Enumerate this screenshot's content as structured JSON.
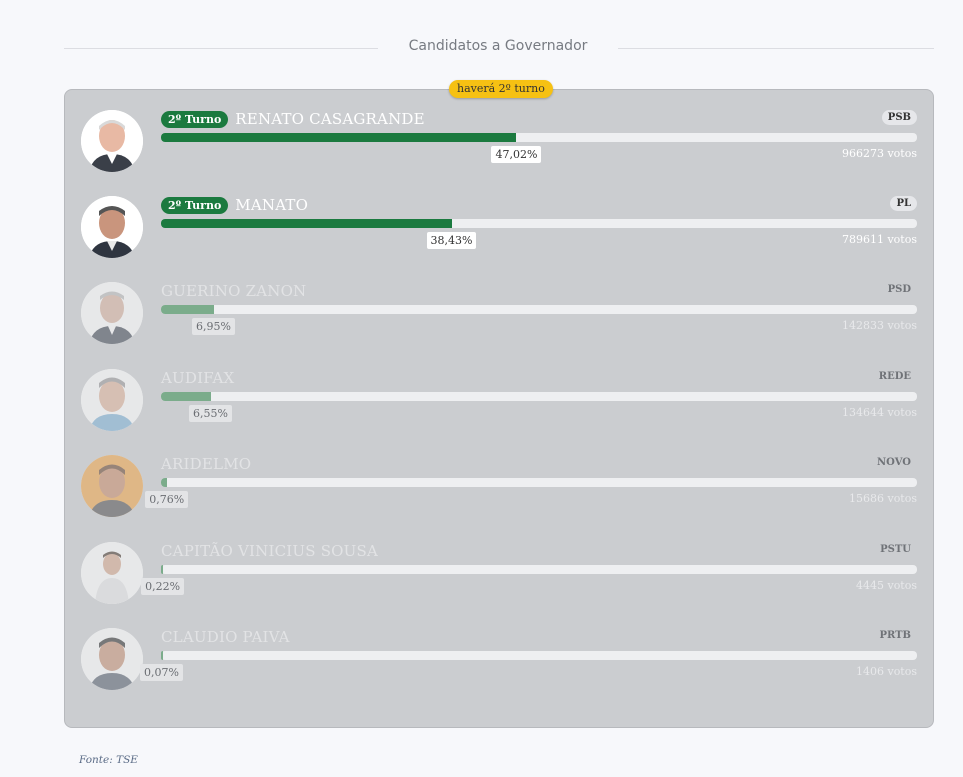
{
  "header": {
    "title": "Candidatos a Governador"
  },
  "runoff_badge": "haverá 2º turno",
  "turn_badge_label": "2º Turno",
  "candidates": [
    {
      "name": "RENATO CASAGRANDE",
      "party": "PSB",
      "percent_label": "47,02%",
      "percent": 47.02,
      "votes_label": "966273 votos",
      "second_round": true
    },
    {
      "name": "MANATO",
      "party": "PL",
      "percent_label": "38,43%",
      "percent": 38.43,
      "votes_label": "789611 votos",
      "second_round": true
    },
    {
      "name": "GUERINO ZANON",
      "party": "PSD",
      "percent_label": "6,95%",
      "percent": 6.95,
      "votes_label": "142833 votos",
      "second_round": false
    },
    {
      "name": "AUDIFAX",
      "party": "REDE",
      "percent_label": "6,55%",
      "percent": 6.55,
      "votes_label": "134644 votos",
      "second_round": false
    },
    {
      "name": "ARIDELMO",
      "party": "NOVO",
      "percent_label": "0,76%",
      "percent": 0.76,
      "votes_label": "15686 votos",
      "second_round": false
    },
    {
      "name": "CAPITÃO VINICIUS SOUSA",
      "party": "PSTU",
      "percent_label": "0,22%",
      "percent": 0.22,
      "votes_label": "4445 votos",
      "second_round": false
    },
    {
      "name": "CLAUDIO PAIVA",
      "party": "PRTB",
      "percent_label": "0,07%",
      "percent": 0.07,
      "votes_label": "1406 votos",
      "second_round": false
    }
  ],
  "source": "Fonte: TSE",
  "colors": {
    "accent": "#1b7a3f",
    "badge": "#f6c113",
    "panel": "#cbcdd0"
  }
}
